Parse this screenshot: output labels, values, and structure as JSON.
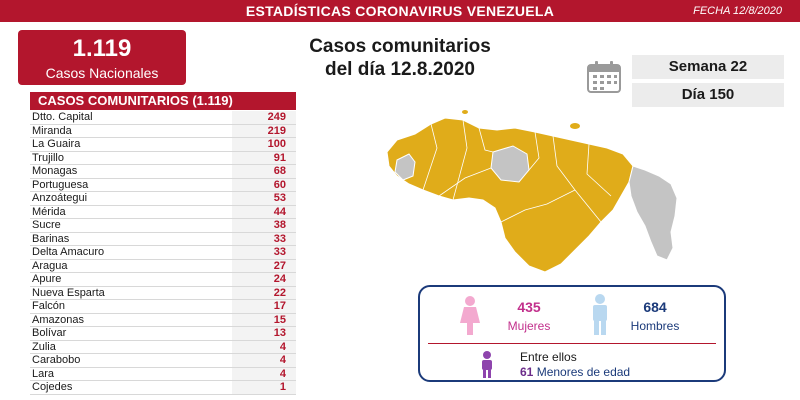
{
  "header": {
    "title": "ESTADÍSTICAS CORONAVIRUS VENEZUELA",
    "date": "FECHA 12/8/2020"
  },
  "total": {
    "value": "1.119",
    "label": "Casos Nacionales"
  },
  "headline": {
    "line1": "Casos comunitarios",
    "line2": "del día 12.8.2020"
  },
  "calendar": {
    "week": "Semana 22",
    "day": "Día 150"
  },
  "table": {
    "header": "CASOS COMUNITARIOS (1.119)",
    "rows": [
      {
        "state": "Dtto. Capital",
        "cases": "249"
      },
      {
        "state": "Miranda",
        "cases": "219"
      },
      {
        "state": "La Guaira",
        "cases": "100"
      },
      {
        "state": "Trujillo",
        "cases": "91"
      },
      {
        "state": "Monagas",
        "cases": "68"
      },
      {
        "state": "Portuguesa",
        "cases": "60"
      },
      {
        "state": "Anzoátegui",
        "cases": "53"
      },
      {
        "state": "Mérida",
        "cases": "44"
      },
      {
        "state": "Sucre",
        "cases": "38"
      },
      {
        "state": "Barinas",
        "cases": "33"
      },
      {
        "state": "Delta Amacuro",
        "cases": "33"
      },
      {
        "state": "Aragua",
        "cases": "27"
      },
      {
        "state": "Apure",
        "cases": "24"
      },
      {
        "state": "Nueva Esparta",
        "cases": "22"
      },
      {
        "state": "Falcón",
        "cases": "17"
      },
      {
        "state": "Amazonas",
        "cases": "15"
      },
      {
        "state": "Bolívar",
        "cases": "13"
      },
      {
        "state": "Zulia",
        "cases": "4"
      },
      {
        "state": "Carabobo",
        "cases": "4"
      },
      {
        "state": "Lara",
        "cases": "4"
      },
      {
        "state": "Cojedes",
        "cases": "1"
      }
    ]
  },
  "demographics": {
    "women_count": "435",
    "women_label": "Mujeres",
    "men_count": "684",
    "men_label": "Hombres",
    "minors_title": "Entre ellos",
    "minors_count": "61",
    "minors_label": "Menores de edad"
  },
  "colors": {
    "brand_red": "#b3162d",
    "map_affected": "#e0ac1a",
    "map_unaffected": "#c4c4c4",
    "women": "#c2308c",
    "men": "#1b3a7a",
    "minors": "#6b2c8a"
  },
  "icons": {
    "calendar": "calendar-icon",
    "female": "female-figure-icon",
    "male": "male-figure-icon",
    "child": "child-figure-icon"
  }
}
